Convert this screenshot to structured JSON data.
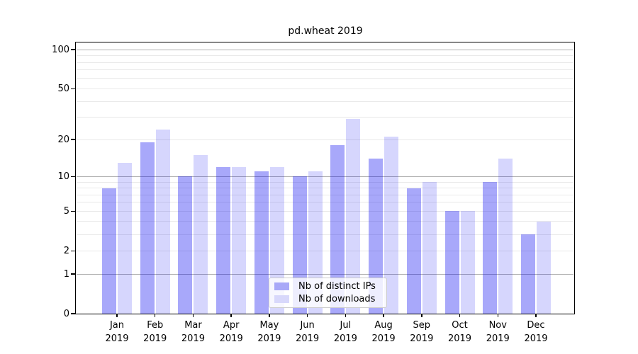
{
  "figure": {
    "title": "pd.wheat 2019"
  },
  "chart_data": {
    "type": "bar",
    "title": "pd.wheat 2019",
    "categories": [
      "Jan 2019",
      "Feb 2019",
      "Mar 2019",
      "Apr 2019",
      "May 2019",
      "Jun 2019",
      "Jul 2019",
      "Aug 2019",
      "Sep 2019",
      "Oct 2019",
      "Nov 2019",
      "Dec 2019"
    ],
    "series": [
      {
        "name": "Nb of distinct IPs",
        "color": "rgba(0,0,240,0.34)",
        "legend_color": "#a8a8f8",
        "values": [
          8,
          19,
          10,
          12,
          11,
          10,
          18,
          14,
          8,
          5,
          9,
          3
        ]
      },
      {
        "name": "Nb of downloads",
        "color": "rgba(0,0,240,0.16)",
        "legend_color": "#d8d8fb",
        "values": [
          13,
          24,
          15,
          12,
          12,
          11,
          29,
          21,
          9,
          5,
          14,
          4
        ]
      }
    ],
    "yscale": "log1p",
    "ylim": [
      0,
      115
    ],
    "yticks": [
      100,
      50,
      20,
      10,
      5,
      2,
      1,
      0
    ],
    "gridlines": {
      "major": [
        100,
        10,
        1
      ],
      "minor": [
        90,
        80,
        70,
        60,
        50,
        40,
        30,
        20,
        9,
        8,
        7,
        6,
        5,
        4,
        3,
        2
      ]
    },
    "legend_position": "lower center",
    "colors": {
      "major_grid": "#b0b0b0",
      "minor_grid": "#e9e9e9",
      "axis": "#000000"
    }
  }
}
